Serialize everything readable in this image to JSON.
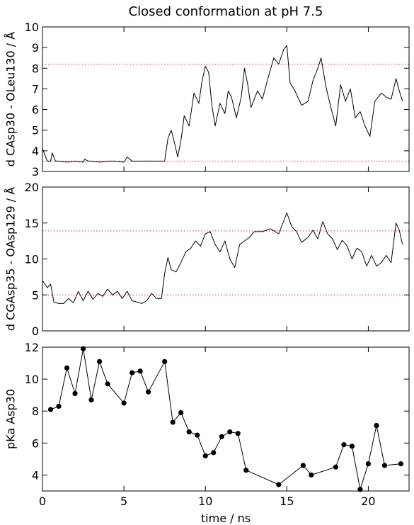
{
  "title": "Closed conformation at pH 7.5",
  "colors": {
    "axis": "#000000",
    "trace": "#000000",
    "ref_line": "#cc3333",
    "background": "#ffffff"
  },
  "chart_data": [
    {
      "type": "line",
      "ylabel": "d CAsp30 - OLeu130 / Å",
      "xlim": [
        0,
        22.5
      ],
      "ylim": [
        3,
        10
      ],
      "yticks": [
        3,
        4,
        5,
        6,
        7,
        8,
        9,
        10
      ],
      "xtick_labels_shown": false,
      "grid": false,
      "reference_lines": [
        3.5,
        8.2
      ],
      "series": [
        {
          "x": [
            0,
            0.3,
            0.5,
            0.6,
            0.8,
            1,
            1.5,
            2,
            2.5,
            2.6,
            2.8,
            3,
            3.5,
            4,
            4.5,
            5,
            5.2,
            5.5,
            6,
            6.5,
            7,
            7.5,
            7.7,
            7.9,
            8.1,
            8.3,
            8.5,
            8.7,
            9,
            9.3,
            9.6,
            9.8,
            10,
            10.2,
            10.4,
            10.6,
            10.9,
            11.2,
            11.4,
            11.6,
            11.9,
            12.2,
            12.4,
            12.6,
            12.8,
            13.2,
            13.5,
            13.8,
            14.2,
            14.5,
            14.8,
            15,
            15.2,
            15.5,
            15.9,
            16.3,
            16.6,
            16.9,
            17.1,
            17.4,
            17.7,
            18,
            18.3,
            18.6,
            18.9,
            19.2,
            19.5,
            19.8,
            20.1,
            20.4,
            20.8,
            21.1,
            21.4,
            21.7,
            21.9,
            22.1
          ],
          "y": [
            4.1,
            3.5,
            3.5,
            3.9,
            3.5,
            3.5,
            3.45,
            3.5,
            3.45,
            3.6,
            3.5,
            3.5,
            3.45,
            3.5,
            3.5,
            3.45,
            3.7,
            3.5,
            3.5,
            3.5,
            3.5,
            3.5,
            4.6,
            5.0,
            4.4,
            3.7,
            4.5,
            5.7,
            5.2,
            6.8,
            6.3,
            7.4,
            8.1,
            7.8,
            6.2,
            5.2,
            6.3,
            5.8,
            6.9,
            6.6,
            5.6,
            6.6,
            8.0,
            7.2,
            6.1,
            6.9,
            6.5,
            7.4,
            8.5,
            8.2,
            8.9,
            9.1,
            7.3,
            6.9,
            6.2,
            6.4,
            7.4,
            8.0,
            8.5,
            7.1,
            6.1,
            5.2,
            7.2,
            6.4,
            7.0,
            5.6,
            5.9,
            5.2,
            4.7,
            6.4,
            6.8,
            6.6,
            6.5,
            7.5,
            6.9,
            6.4
          ]
        }
      ]
    },
    {
      "type": "line",
      "ylabel": "d CGAsp35 - OAsp129 / Å",
      "xlim": [
        0,
        22.5
      ],
      "ylim": [
        0,
        20
      ],
      "yticks": [
        0,
        5,
        10,
        15,
        20
      ],
      "xtick_labels_shown": false,
      "grid": false,
      "reference_lines": [
        5,
        13.9
      ],
      "series": [
        {
          "x": [
            0,
            0.3,
            0.5,
            0.7,
            1,
            1.3,
            1.6,
            1.9,
            2.2,
            2.5,
            2.8,
            3.1,
            3.4,
            3.7,
            4,
            4.3,
            4.6,
            4.9,
            5.2,
            5.5,
            5.8,
            6.1,
            6.4,
            6.7,
            7,
            7.3,
            7.5,
            7.7,
            7.9,
            8.2,
            8.5,
            8.8,
            9.1,
            9.4,
            9.7,
            10,
            10.3,
            10.6,
            10.9,
            11.2,
            11.5,
            11.8,
            12.1,
            12.4,
            12.7,
            13,
            13.5,
            14,
            14.5,
            15,
            15.3,
            15.6,
            15.9,
            16.3,
            16.6,
            16.9,
            17.2,
            17.5,
            17.8,
            18.1,
            18.4,
            18.7,
            19,
            19.3,
            19.6,
            19.9,
            20.2,
            20.5,
            20.8,
            21.1,
            21.4,
            21.7,
            21.9,
            22.1
          ],
          "y": [
            7,
            6,
            6.5,
            4,
            3.8,
            3.8,
            4.5,
            3.9,
            5.5,
            4.2,
            5.5,
            4.4,
            5.2,
            4.8,
            5.8,
            5.0,
            5.5,
            4.5,
            5.5,
            4.2,
            4.0,
            3.8,
            4.2,
            5.2,
            4.5,
            4.5,
            8.0,
            10.2,
            8.5,
            8.2,
            9.5,
            11.0,
            11.5,
            12.5,
            11.8,
            13.5,
            13.8,
            12.0,
            11.0,
            12.5,
            10.0,
            8.8,
            12.0,
            12.5,
            13.0,
            13.8,
            13.8,
            14.2,
            13.5,
            16.4,
            14.5,
            13.8,
            12.3,
            13.0,
            14.0,
            12.8,
            15.2,
            13.5,
            12.8,
            11.3,
            12.6,
            11.8,
            10.0,
            11.5,
            11.0,
            9.0,
            10.5,
            9.0,
            9.5,
            10.5,
            9.5,
            15.0,
            14.0,
            12.0
          ]
        }
      ]
    },
    {
      "type": "line",
      "ylabel": "pKa Asp30",
      "xlabel": "time / ns",
      "xlim": [
        0,
        22.5
      ],
      "ylim": [
        3,
        12
      ],
      "yticks": [
        4,
        6,
        8,
        10,
        12
      ],
      "xticks": [
        0,
        5,
        10,
        15,
        20
      ],
      "grid": false,
      "markers": "filled-circle",
      "series": [
        {
          "x": [
            0.5,
            1.0,
            1.5,
            2.0,
            2.5,
            3.0,
            3.5,
            4.0,
            5.0,
            5.5,
            6.0,
            6.5,
            7.5,
            8.0,
            8.5,
            9.0,
            9.5,
            10.0,
            10.5,
            11.0,
            11.5,
            12.0,
            12.5,
            14.5,
            16.0,
            16.5,
            18.0,
            18.5,
            19.0,
            19.5,
            20.0,
            20.5,
            21.0,
            22.0
          ],
          "y": [
            8.1,
            8.3,
            10.7,
            9.1,
            11.9,
            8.7,
            11.1,
            9.7,
            8.5,
            10.4,
            10.5,
            9.2,
            11.1,
            7.3,
            7.9,
            6.7,
            6.5,
            5.2,
            5.4,
            6.4,
            6.7,
            6.6,
            4.3,
            3.4,
            4.6,
            4.0,
            4.5,
            5.9,
            5.8,
            3.1,
            4.7,
            7.1,
            4.6,
            4.7
          ]
        }
      ]
    }
  ]
}
